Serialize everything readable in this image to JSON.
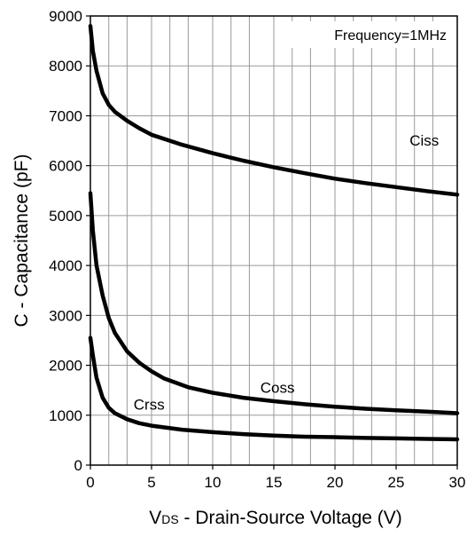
{
  "chart_data": {
    "type": "line",
    "annotation": "Frequency=1MHz",
    "xlabel": {
      "main": "V",
      "sub": "DS",
      "rest": " - Drain-Source Voltage (V)"
    },
    "ylabel": "C - Capacitance (pF)",
    "xlim": [
      0,
      30
    ],
    "ylim": [
      0,
      9000
    ],
    "x_ticks": [
      0,
      5,
      10,
      15,
      20,
      25,
      30
    ],
    "y_ticks": [
      0,
      1000,
      2000,
      3000,
      4000,
      5000,
      6000,
      7000,
      8000,
      9000
    ],
    "grid_x": [
      0,
      1.5,
      3,
      5,
      6.5,
      8,
      10,
      11.5,
      13,
      15,
      16.5,
      18,
      20,
      21.5,
      23,
      25,
      26.5,
      28,
      30
    ],
    "grid": true,
    "series": [
      {
        "name": "Ciss",
        "x": [
          0,
          0.2,
          0.5,
          1,
          1.5,
          2,
          3,
          4,
          5,
          7.5,
          10,
          12.5,
          15,
          17.5,
          20,
          22.5,
          25,
          27.5,
          30
        ],
        "y": [
          8800,
          8300,
          7900,
          7450,
          7220,
          7080,
          6900,
          6750,
          6620,
          6420,
          6250,
          6100,
          5970,
          5850,
          5740,
          5650,
          5570,
          5490,
          5420
        ]
      },
      {
        "name": "Coss",
        "x": [
          0,
          0.2,
          0.5,
          1,
          1.5,
          2,
          3,
          4,
          5,
          6,
          8,
          10,
          12.5,
          15,
          17.5,
          20,
          22.5,
          25,
          27.5,
          30
        ],
        "y": [
          5450,
          4700,
          4000,
          3400,
          2950,
          2650,
          2280,
          2050,
          1880,
          1740,
          1560,
          1450,
          1350,
          1280,
          1220,
          1170,
          1130,
          1100,
          1070,
          1040
        ]
      },
      {
        "name": "Crss",
        "x": [
          0,
          0.2,
          0.5,
          1,
          1.5,
          2,
          3,
          4,
          5,
          7.5,
          10,
          12.5,
          15,
          17.5,
          20,
          22.5,
          25,
          27.5,
          30
        ],
        "y": [
          2550,
          2200,
          1750,
          1350,
          1150,
          1040,
          920,
          840,
          790,
          710,
          660,
          620,
          590,
          570,
          560,
          545,
          535,
          525,
          515
        ]
      }
    ],
    "series_labels": {
      "Ciss": "Ciss",
      "Coss": "Coss",
      "Crss": "Crss"
    }
  }
}
